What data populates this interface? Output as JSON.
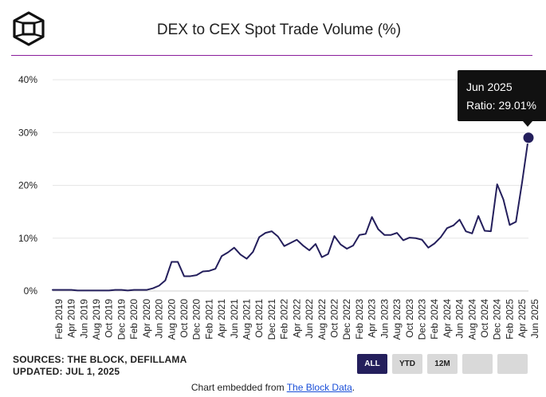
{
  "header": {
    "logo_icon": "the-block-cube-logo-icon",
    "title": "DEX to CEX Spot Trade Volume (%)"
  },
  "colors": {
    "line": "#241f5c",
    "rule": "#8a1c9c",
    "grid": "#e6e6e6",
    "active_button": "#241f5c",
    "inactive_button": "#d9d9d9",
    "link": "#1a4fd8"
  },
  "chart_data": {
    "type": "line",
    "title": "DEX to CEX Spot Trade Volume (%)",
    "xlabel": "",
    "ylabel": "",
    "ylim": [
      0,
      40
    ],
    "grid": true,
    "y_ticks": [
      "0%",
      "10%",
      "20%",
      "30%",
      "40%"
    ],
    "y_tick_values": [
      0,
      10,
      20,
      30,
      40
    ],
    "x_tick_labels": [
      "Feb 2019",
      "Apr 2019",
      "Jun 2019",
      "Aug 2019",
      "Oct 2019",
      "Dec 2019",
      "Feb 2020",
      "Apr 2020",
      "Jun 2020",
      "Aug 2020",
      "Oct 2020",
      "Dec 2020",
      "Feb 2021",
      "Apr 2021",
      "Jun 2021",
      "Aug 2021",
      "Oct 2021",
      "Dec 2021",
      "Feb 2022",
      "Apr 2022",
      "Jun 2022",
      "Aug 2022",
      "Oct 2022",
      "Dec 2022",
      "Feb 2023",
      "Apr 2023",
      "Jun 2023",
      "Aug 2023",
      "Oct 2023",
      "Dec 2023",
      "Feb 2024",
      "Apr 2024",
      "Jun 2024",
      "Aug 2024",
      "Oct 2024",
      "Dec 2024",
      "Feb 2025",
      "Apr 2025",
      "Jun 2025"
    ],
    "series": [
      {
        "name": "Ratio",
        "start": "Jan 2019",
        "values": [
          0.2,
          0.2,
          0.2,
          0.2,
          0.1,
          0.1,
          0.1,
          0.1,
          0.1,
          0.1,
          0.2,
          0.2,
          0.1,
          0.2,
          0.2,
          0.2,
          0.5,
          1.0,
          2.0,
          5.5,
          5.5,
          2.8,
          2.8,
          3.0,
          3.7,
          3.8,
          4.2,
          6.6,
          7.3,
          8.2,
          6.9,
          6.1,
          7.4,
          10.2,
          11.0,
          11.3,
          10.3,
          8.5,
          9.1,
          9.7,
          8.6,
          7.7,
          8.9,
          6.4,
          7.0,
          10.4,
          8.8,
          8.0,
          8.6,
          10.6,
          10.8,
          14.0,
          11.7,
          10.6,
          10.6,
          11.0,
          9.6,
          10.1,
          10.0,
          9.7,
          8.2,
          9.0,
          10.2,
          11.9,
          12.4,
          13.5,
          11.3,
          10.9,
          14.2,
          11.4,
          11.3,
          20.2,
          17.3,
          12.5,
          13.1,
          20.7,
          29.01
        ]
      }
    ],
    "highlight": {
      "label": "Jun 2025",
      "ratio_text": "Ratio: 29.01%",
      "value": 29.01
    }
  },
  "footer": {
    "sources": "SOURCES: THE BLOCK, DEFILLAMA",
    "updated": "UPDATED: JUL 1, 2025",
    "range_buttons": [
      "ALL",
      "YTD",
      "12M"
    ],
    "active_range": "ALL",
    "embed_prefix": "Chart embedded from ",
    "embed_link": "The Block Data",
    "embed_suffix": "."
  }
}
